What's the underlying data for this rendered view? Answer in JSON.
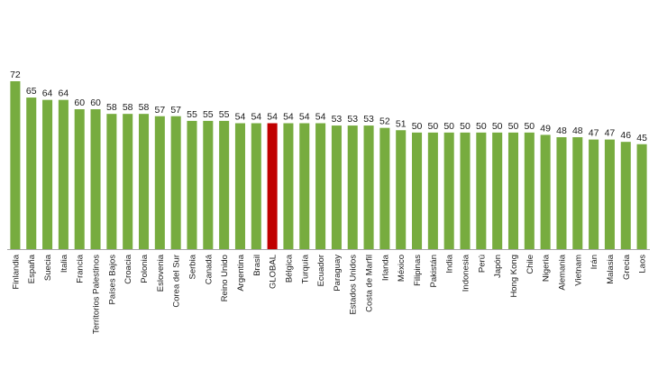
{
  "chart_data": {
    "type": "bar",
    "title": "",
    "xlabel": "",
    "ylabel": "",
    "ylim": [
      0,
      72
    ],
    "grid": false,
    "legend": "none",
    "colors": {
      "default": "#77ac3f",
      "highlight": "#c00000",
      "axis": "#a6a6a6"
    },
    "highlight_category": "GLOBAL",
    "categories": [
      "Finlandia",
      "España",
      "Suecia",
      "Italia",
      "Francia",
      "Territorios Palestinos",
      "Países Bajos",
      "Croacia",
      "Polonia",
      "Eslovenia",
      "Corea del Sur",
      "Serbia",
      "Canadá",
      "Reino Unido",
      "Argentina",
      "Brasil",
      "GLOBAL",
      "Bélgica",
      "Turquía",
      "Ecuador",
      "Paraguay",
      "Estados Unidos",
      "Costa de Marfil",
      "Irlanda",
      "México",
      "Filipinas",
      "Pakistán",
      "India",
      "Indonesia",
      "Perú",
      "Japón",
      "Hong Kong",
      "Chile",
      "Nigeria",
      "Alemania",
      "Vietnam",
      "Irán",
      "Malasia",
      "Grecia",
      "Laos"
    ],
    "values": [
      72,
      65,
      64,
      64,
      60,
      60,
      58,
      58,
      58,
      57,
      57,
      55,
      55,
      55,
      54,
      54,
      54,
      54,
      54,
      54,
      53,
      53,
      53,
      52,
      51,
      50,
      50,
      50,
      50,
      50,
      50,
      50,
      50,
      49,
      48,
      48,
      47,
      47,
      46,
      45
    ]
  }
}
